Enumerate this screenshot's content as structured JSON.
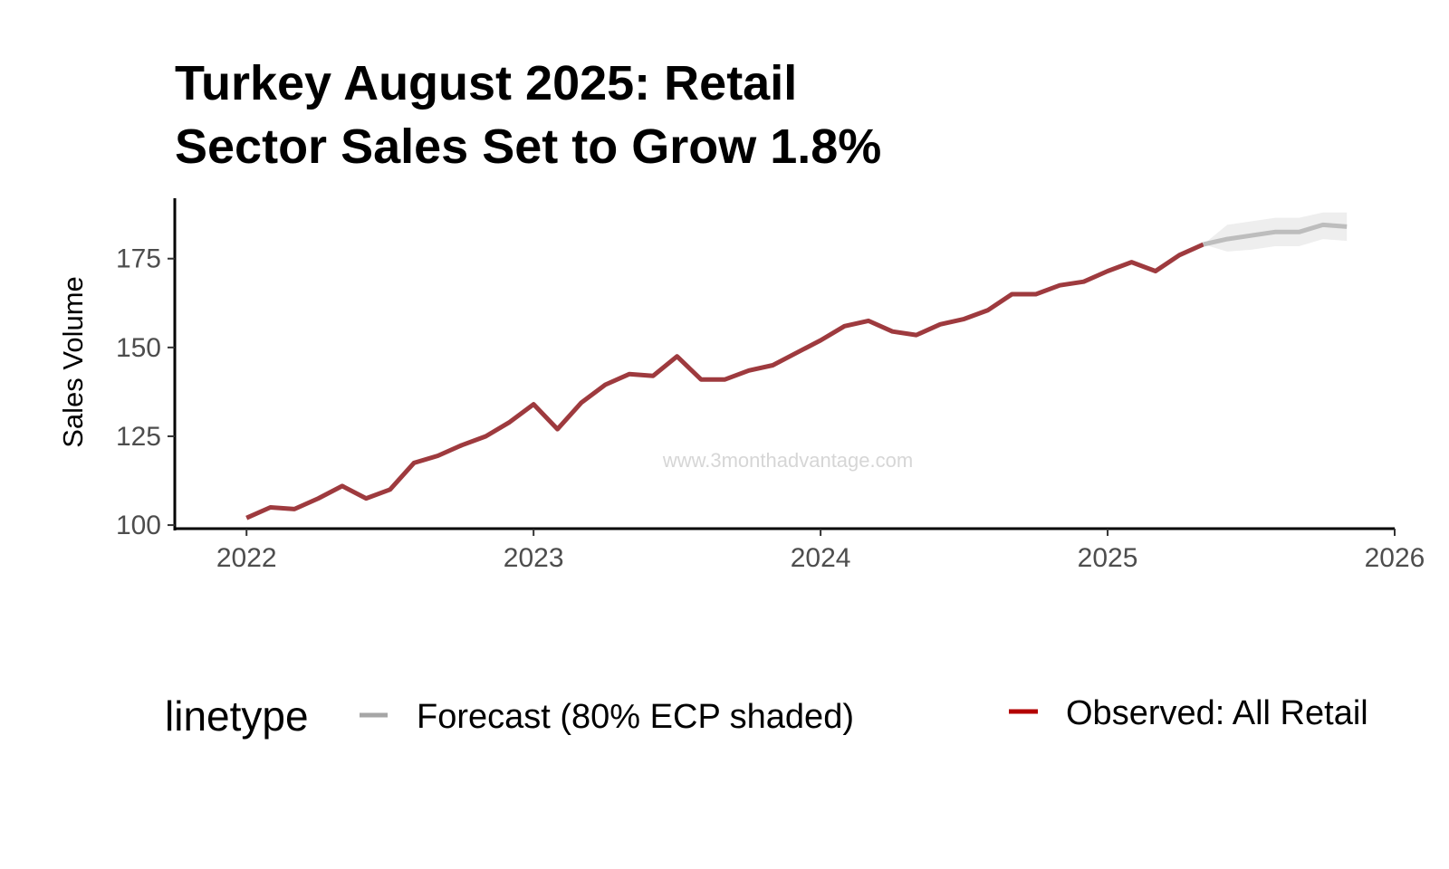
{
  "chart_data": {
    "type": "line",
    "title_lines": [
      "Turkey August 2025: Retail",
      "Sector Sales Set to Grow 1.8%"
    ],
    "xlabel": "",
    "ylabel": "Sales Volume",
    "x_ticks": [
      "2022",
      "2023",
      "2024",
      "2025",
      "2026"
    ],
    "y_ticks": [
      100,
      125,
      150,
      175
    ],
    "xlim": [
      "2021-10",
      "2026-01"
    ],
    "ylim": [
      99,
      192
    ],
    "grid": false,
    "legend": {
      "title": "linetype",
      "position": "bottom",
      "entries": [
        {
          "label": "Forecast (80% ECP shaded)",
          "color": "#a6a6a6"
        },
        {
          "label": "Observed: All Retail",
          "color": "#b30000"
        }
      ]
    },
    "watermark": "www.3monthadvantage.com",
    "series": [
      {
        "name": "Observed: All Retail",
        "color": "#9e3a3e",
        "x": [
          "2022-01",
          "2022-02",
          "2022-03",
          "2022-04",
          "2022-05",
          "2022-06",
          "2022-07",
          "2022-08",
          "2022-09",
          "2022-10",
          "2022-11",
          "2022-12",
          "2023-01",
          "2023-02",
          "2023-03",
          "2023-04",
          "2023-05",
          "2023-06",
          "2023-07",
          "2023-08",
          "2023-09",
          "2023-10",
          "2023-11",
          "2023-12",
          "2024-01",
          "2024-02",
          "2024-03",
          "2024-04",
          "2024-05",
          "2024-06",
          "2024-07",
          "2024-08",
          "2024-09",
          "2024-10",
          "2024-11",
          "2024-12",
          "2025-01",
          "2025-02",
          "2025-03",
          "2025-04",
          "2025-05"
        ],
        "y": [
          102,
          105,
          104.5,
          107.5,
          111,
          107.5,
          110,
          117.5,
          119.5,
          122.5,
          125,
          129,
          134,
          127,
          134.5,
          139.5,
          142.5,
          142,
          147.5,
          141,
          141,
          143.5,
          145,
          148.5,
          152,
          156,
          157.5,
          154.5,
          153.5,
          156.5,
          158,
          160.5,
          165,
          165,
          167.5,
          168.5,
          171.5,
          174,
          171.5,
          176,
          179
        ]
      },
      {
        "name": "Forecast (80% ECP shaded)",
        "color": "#bdbdbd",
        "x": [
          "2025-05",
          "2025-06",
          "2025-07",
          "2025-08",
          "2025-09",
          "2025-10",
          "2025-11"
        ],
        "y": [
          179,
          180.5,
          181.5,
          182.5,
          182.5,
          184.5,
          184
        ],
        "lower": [
          179,
          177,
          177.5,
          178.5,
          178.5,
          180.5,
          180
        ],
        "upper": [
          179,
          184.5,
          185.5,
          186.5,
          186.5,
          188,
          188
        ]
      }
    ]
  }
}
